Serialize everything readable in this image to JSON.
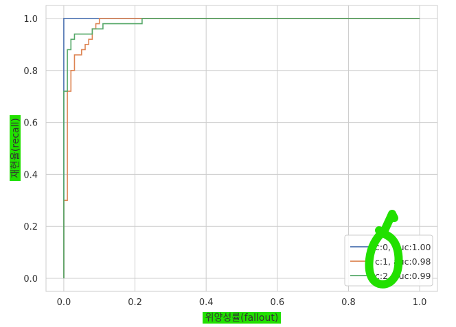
{
  "chart_data": {
    "type": "line",
    "title": "",
    "xlabel": "위양성률(fallout)",
    "ylabel": "재현율(recall)",
    "xlim": [
      -0.05,
      1.05
    ],
    "ylim": [
      -0.05,
      1.05
    ],
    "xticks": [
      "0.0",
      "0.2",
      "0.4",
      "0.6",
      "0.8",
      "1.0"
    ],
    "yticks": [
      "0.0",
      "0.2",
      "0.4",
      "0.6",
      "0.8",
      "1.0"
    ],
    "grid": true,
    "legend_position": "lower-right",
    "series": [
      {
        "name": "c:0, auc:1.00",
        "color": "#4c72b0",
        "x": [
          0.0,
          0.0,
          0.0,
          0.0,
          1.0
        ],
        "y": [
          0.0,
          0.72,
          0.72,
          1.0,
          1.0
        ]
      },
      {
        "name": "c:1, auc:0.98",
        "color": "#dd8452",
        "x": [
          0.0,
          0.0,
          0.01,
          0.01,
          0.02,
          0.02,
          0.03,
          0.03,
          0.05,
          0.05,
          0.06,
          0.06,
          0.07,
          0.07,
          0.08,
          0.08,
          0.09,
          0.09,
          0.1,
          0.1,
          0.22,
          0.22,
          1.0
        ],
        "y": [
          0.0,
          0.3,
          0.3,
          0.72,
          0.72,
          0.8,
          0.8,
          0.86,
          0.86,
          0.88,
          0.88,
          0.9,
          0.9,
          0.92,
          0.92,
          0.96,
          0.96,
          0.98,
          0.98,
          1.0,
          1.0,
          1.0,
          1.0
        ]
      },
      {
        "name": "c:2, auc:0.99",
        "color": "#55a868",
        "x": [
          0.0,
          0.0,
          0.01,
          0.01,
          0.02,
          0.02,
          0.03,
          0.03,
          0.08,
          0.08,
          0.11,
          0.11,
          0.22,
          0.22,
          1.0
        ],
        "y": [
          0.0,
          0.72,
          0.72,
          0.88,
          0.88,
          0.92,
          0.92,
          0.94,
          0.94,
          0.96,
          0.96,
          0.98,
          0.98,
          1.0,
          1.0
        ]
      }
    ]
  },
  "annotations": {
    "highlight_color": "#22e000"
  }
}
